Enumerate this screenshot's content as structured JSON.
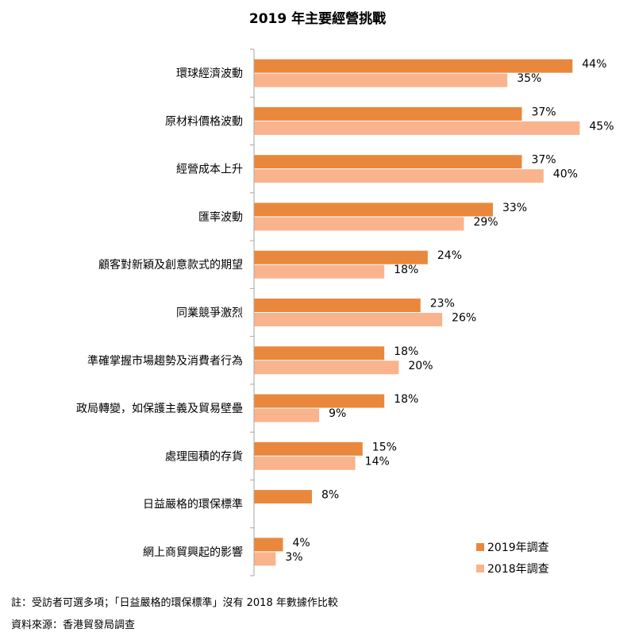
{
  "chart_data": {
    "type": "bar",
    "orientation": "horizontal",
    "title": "2019 年主要經營挑戰",
    "categories": [
      "環球經濟波動",
      "原材料價格波動",
      "經營成本上升",
      "匯率波動",
      "顧客對新穎及創意款式的期望",
      "同業競爭激烈",
      "準確掌握市場趨勢及消費者行為",
      "政局轉變，如保護主義及貿易壁壘",
      "處理囤積的存貨",
      "日益嚴格的環保標準",
      "網上商貿興起的影響"
    ],
    "series": [
      {
        "name": "2019年調查",
        "color": "#e9883c",
        "values": [
          44,
          37,
          37,
          33,
          24,
          23,
          18,
          18,
          15,
          8,
          4
        ],
        "labels": [
          "44%",
          "37%",
          "37%",
          "33%",
          "24%",
          "23%",
          "18%",
          "18%",
          "15%",
          "8%",
          "4%"
        ]
      },
      {
        "name": "2018年調查",
        "color": "#f9b48d",
        "values": [
          35,
          45,
          40,
          29,
          18,
          26,
          20,
          9,
          14,
          null,
          3
        ],
        "labels": [
          "35%",
          "45%",
          "40%",
          "29%",
          "18%",
          "26%",
          "20%",
          "9%",
          "14%",
          "",
          "3%"
        ]
      }
    ],
    "xlim": [
      0,
      45
    ],
    "grid": false,
    "legend": "bottom-right"
  },
  "notes": {
    "footnote": "註：受訪者可選多項；「日益嚴格的環保標準」沒有 2018 年數據作比較",
    "source": "資料來源：香港貿發局調查"
  }
}
